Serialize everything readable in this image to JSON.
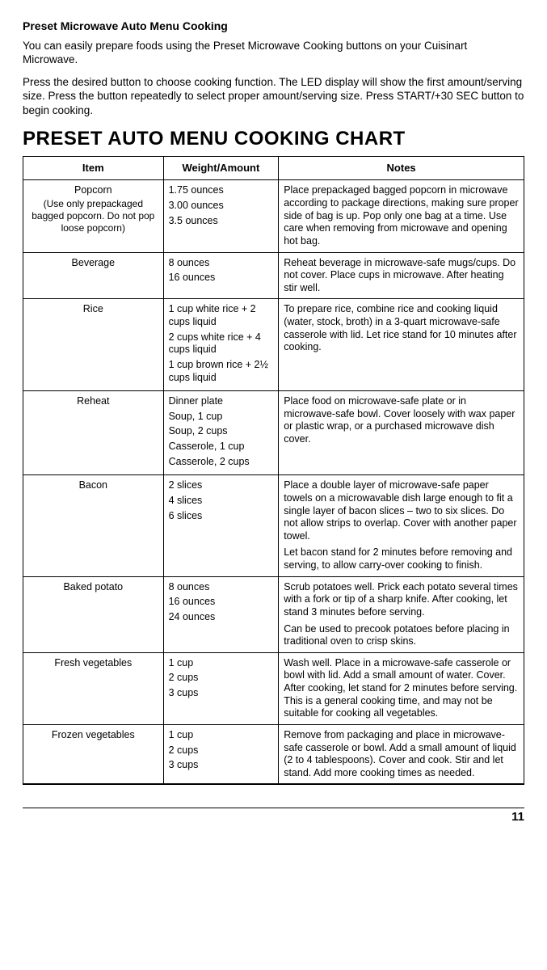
{
  "section_title": "Preset Microwave Auto Menu Cooking",
  "intro_paragraphs": [
    "You can easily prepare foods using the Preset Microwave Cooking buttons on your Cuisinart Microwave.",
    "Press the desired button to choose cooking function. The LED display will show the first amount/serving size. Press the button repeatedly to select proper amount/serving size. Press START/+30 SEC button to begin cooking."
  ],
  "chart_title": "PRESET AUTO MENU COOKING CHART",
  "columns": [
    "Item",
    "Weight/Amount",
    "Notes"
  ],
  "rows": [
    {
      "item": "Popcorn",
      "item_sub": "(Use only prepackaged bagged popcorn. Do not pop loose popcorn)",
      "weight": [
        "1.75 ounces",
        "3.00 ounces",
        "3.5 ounces"
      ],
      "notes": [
        "Place prepackaged bagged popcorn in microwave according to package directions, making sure proper side of bag is up. Pop only one bag at a time. Use care when removing from microwave and opening hot bag."
      ]
    },
    {
      "item": "Beverage",
      "item_sub": "",
      "weight": [
        "8 ounces",
        "16 ounces"
      ],
      "notes": [
        "Reheat beverage in microwave-safe mugs/cups. Do not cover. Place cups in microwave. After heating stir well."
      ]
    },
    {
      "item": "Rice",
      "item_sub": "",
      "weight": [
        "1 cup white rice + 2 cups liquid",
        "2 cups white rice + 4 cups liquid",
        "1 cup brown rice + 2½ cups liquid"
      ],
      "notes": [
        "To prepare rice, combine rice and cooking liquid (water, stock, broth) in a 3-quart microwave-safe casserole with lid. Let rice stand for 10 minutes after cooking."
      ]
    },
    {
      "item": "Reheat",
      "item_sub": "",
      "weight": [
        "Dinner plate",
        "Soup, 1 cup",
        "Soup, 2 cups",
        "Casserole, 1 cup",
        "Casserole, 2 cups"
      ],
      "notes": [
        "Place food on microwave-safe plate or in microwave-safe bowl. Cover loosely with wax paper or plastic wrap, or a purchased microwave dish cover."
      ]
    },
    {
      "item": "Bacon",
      "item_sub": "",
      "weight": [
        "2 slices",
        "4 slices",
        "6 slices"
      ],
      "notes": [
        "Place a double layer of microwave-safe paper towels on a microwavable dish large enough to fit a single layer of bacon slices – two to six slices. Do not allow strips to overlap. Cover with another paper towel.",
        "Let bacon stand for 2 minutes before removing and serving, to allow carry-over cooking to finish."
      ]
    },
    {
      "item": "Baked potato",
      "item_sub": "",
      "weight": [
        "8 ounces",
        "16 ounces",
        "24 ounces"
      ],
      "notes": [
        "Scrub potatoes well. Prick each potato several times with a fork or tip of a sharp knife. After cooking, let stand 3 minutes before serving.",
        "Can be used to precook potatoes before placing in traditional oven to crisp skins."
      ]
    },
    {
      "item": "Fresh vegetables",
      "item_sub": "",
      "weight": [
        "1 cup",
        "2 cups",
        "3 cups"
      ],
      "notes": [
        "Wash well. Place in a microwave-safe casserole or bowl with lid. Add a small amount of water. Cover. After cooking, let stand for 2 minutes before serving. This is a general cooking time, and may not be suitable for cooking all vegetables."
      ]
    },
    {
      "item": "Frozen vegetables",
      "item_sub": "",
      "weight": [
        "1 cup",
        "2 cups",
        "3 cups"
      ],
      "notes": [
        "Remove from packaging and place in microwave-safe casserole or bowl. Add a small amount of liquid (2 to 4 tablespoons). Cover and cook. Stir and let stand. Add more cooking times as needed."
      ]
    }
  ],
  "page_number": "11"
}
